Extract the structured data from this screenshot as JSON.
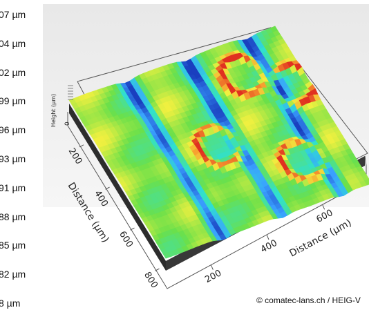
{
  "chart_data": {
    "type": "surface3d",
    "title": "",
    "color_scale_labels": [
      "07 µm",
      "04 µm",
      "02 µm",
      "99 µm",
      "96 µm",
      "93 µm",
      "91 µm",
      "88 µm",
      "85 µm",
      "82 µm",
      "8 µm"
    ],
    "axes": {
      "x": {
        "label": "Distance (µm)",
        "ticks": [
          "200",
          "400",
          "600"
        ]
      },
      "y": {
        "label": "Distance (µm)",
        "ticks": [
          "200",
          "400",
          "600",
          "800"
        ]
      },
      "z": {
        "label": "Height (µm)",
        "ticks": [
          "0"
        ]
      }
    },
    "colormap": [
      "#1a3fbf",
      "#3aa0ff",
      "#2fe0d0",
      "#6be04a",
      "#f0f040",
      "#f7a030",
      "#e03020"
    ],
    "features": {
      "grooves": 3,
      "ring_craters": 4
    }
  },
  "credit": "© comatec-lans.ch / HEIG-V"
}
